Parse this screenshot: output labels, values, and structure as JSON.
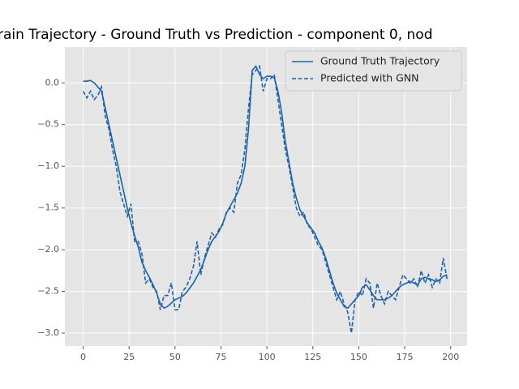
{
  "chart_data": {
    "type": "line",
    "title": "rain Trajectory - Ground Truth vs Prediction - component 0, nod",
    "x": [
      0,
      2,
      4,
      6,
      8,
      10,
      12,
      14,
      16,
      18,
      20,
      22,
      24,
      26,
      28,
      30,
      32,
      34,
      36,
      38,
      40,
      42,
      44,
      46,
      48,
      50,
      52,
      54,
      56,
      58,
      60,
      62,
      64,
      66,
      68,
      70,
      72,
      74,
      76,
      78,
      80,
      82,
      84,
      86,
      88,
      90,
      92,
      94,
      96,
      98,
      100,
      102,
      104,
      106,
      108,
      110,
      112,
      114,
      116,
      118,
      120,
      122,
      124,
      126,
      128,
      130,
      132,
      134,
      136,
      138,
      140,
      142,
      144,
      146,
      148,
      150,
      152,
      154,
      156,
      158,
      160,
      162,
      164,
      166,
      168,
      170,
      172,
      174,
      176,
      178,
      180,
      182,
      184,
      186,
      188,
      190,
      192,
      194,
      196,
      198
    ],
    "series": [
      {
        "name": "Ground Truth Trajectory",
        "color": "#1a63ab",
        "dash": false,
        "values": [
          0.02,
          0.02,
          0.03,
          0.0,
          -0.05,
          -0.1,
          -0.3,
          -0.5,
          -0.7,
          -0.9,
          -1.1,
          -1.3,
          -1.5,
          -1.68,
          -1.83,
          -1.97,
          -2.15,
          -2.25,
          -2.33,
          -2.42,
          -2.52,
          -2.65,
          -2.7,
          -2.68,
          -2.64,
          -2.6,
          -2.58,
          -2.56,
          -2.52,
          -2.46,
          -2.4,
          -2.32,
          -2.24,
          -2.12,
          -2.0,
          -1.9,
          -1.84,
          -1.78,
          -1.68,
          -1.56,
          -1.48,
          -1.4,
          -1.32,
          -1.2,
          -1.0,
          -0.55,
          0.15,
          0.2,
          0.1,
          0.05,
          0.08,
          0.08,
          0.06,
          -0.1,
          -0.35,
          -0.7,
          -0.95,
          -1.2,
          -1.38,
          -1.52,
          -1.6,
          -1.68,
          -1.74,
          -1.8,
          -1.9,
          -1.98,
          -2.1,
          -2.25,
          -2.4,
          -2.52,
          -2.6,
          -2.68,
          -2.7,
          -2.65,
          -2.6,
          -2.55,
          -2.45,
          -2.42,
          -2.48,
          -2.55,
          -2.6,
          -2.6,
          -2.6,
          -2.58,
          -2.55,
          -2.5,
          -2.45,
          -2.42,
          -2.4,
          -2.38,
          -2.4,
          -2.42,
          -2.35,
          -2.33,
          -2.35,
          -2.36,
          -2.38,
          -2.36,
          -2.32,
          -2.3
        ]
      },
      {
        "name": "Predicted with GNN",
        "color": "#1a63ab",
        "dash": true,
        "values": [
          -0.1,
          -0.18,
          -0.1,
          -0.2,
          -0.15,
          -0.05,
          -0.4,
          -0.55,
          -0.8,
          -1.0,
          -1.3,
          -1.45,
          -1.6,
          -1.45,
          -1.9,
          -1.9,
          -2.05,
          -2.4,
          -2.35,
          -2.45,
          -2.5,
          -2.72,
          -2.55,
          -2.55,
          -2.4,
          -2.72,
          -2.72,
          -2.5,
          -2.45,
          -2.35,
          -2.2,
          -1.9,
          -2.3,
          -2.1,
          -1.95,
          -1.8,
          -1.85,
          -1.75,
          -1.7,
          -1.55,
          -1.5,
          -1.55,
          -1.2,
          -1.1,
          -0.8,
          -0.3,
          0.1,
          0.15,
          0.2,
          -0.1,
          0.05,
          0.05,
          0.1,
          -0.2,
          -0.5,
          -0.8,
          -1.0,
          -1.25,
          -1.5,
          -1.6,
          -1.55,
          -1.7,
          -1.75,
          -1.85,
          -1.95,
          -2.0,
          -2.15,
          -2.3,
          -2.45,
          -2.6,
          -2.5,
          -2.65,
          -2.75,
          -3.0,
          -2.6,
          -2.5,
          -2.55,
          -2.35,
          -2.4,
          -2.7,
          -2.4,
          -2.55,
          -2.65,
          -2.5,
          -2.55,
          -2.6,
          -2.45,
          -2.3,
          -2.35,
          -2.4,
          -2.35,
          -2.45,
          -2.25,
          -2.4,
          -2.3,
          -2.45,
          -2.35,
          -2.4,
          -2.1,
          -2.35
        ]
      }
    ],
    "xlim": [
      -9.95,
      208.95
    ],
    "xticks": [
      0,
      25,
      50,
      75,
      100,
      125,
      150,
      175,
      200
    ],
    "ylim": [
      -3.155,
      0.43
    ],
    "yticks": [
      {
        "value": -3,
        "label": "−3.0"
      },
      {
        "value": -2.5,
        "label": "−2.5"
      },
      {
        "value": -2,
        "label": "−2.0"
      },
      {
        "value": -1.5,
        "label": "−1.5"
      },
      {
        "value": -1,
        "label": "−1.0"
      },
      {
        "value": -0.5,
        "label": "−0.5"
      },
      {
        "value": 0,
        "label": "0.0"
      }
    ],
    "grid": true,
    "legend": "upper right"
  }
}
